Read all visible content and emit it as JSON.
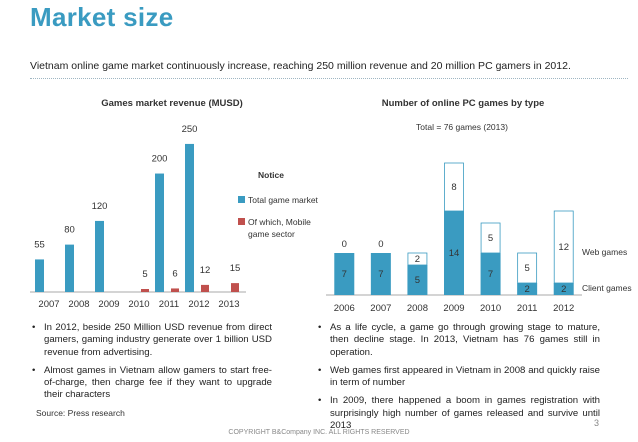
{
  "header": {
    "title": "Market size",
    "subtitle": "Vietnam online game market continuously increase, reaching 250 million revenue and 20 million PC gamers in 2012."
  },
  "colors": {
    "accent": "#3a9bc1",
    "mobile": "#c0504d",
    "web": "#ffffff",
    "web_border": "#3a9bc1"
  },
  "chart_data": [
    {
      "type": "bar",
      "title": "Games market revenue (MUSD)",
      "categories": [
        "2007",
        "2008",
        "2009",
        "2010",
        "2011",
        "2012",
        "2013"
      ],
      "series": [
        {
          "name": "Total game market",
          "values": [
            55,
            80,
            120,
            null,
            200,
            250,
            null
          ]
        },
        {
          "name": "Of which, Mobile game sector",
          "values": [
            null,
            null,
            null,
            5,
            6,
            12,
            15
          ]
        }
      ],
      "ylim": [
        0,
        260
      ],
      "legend_title": "Notice",
      "legend_position": "right"
    },
    {
      "type": "bar",
      "stacked": true,
      "title": "Number of online PC games by type",
      "subtitle": "Total = 76 games (2013)",
      "categories": [
        "2006",
        "2007",
        "2008",
        "2009",
        "2010",
        "2011",
        "2012"
      ],
      "series": [
        {
          "name": "Client games",
          "values": [
            7,
            7,
            5,
            14,
            7,
            2,
            2
          ]
        },
        {
          "name": "Web games",
          "values": [
            0,
            0,
            2,
            8,
            5,
            5,
            12
          ]
        }
      ],
      "ylim": [
        0,
        22.5
      ],
      "legend_position": "right"
    }
  ],
  "notes": {
    "left": [
      "In 2012, beside 250 Million USD revenue from direct gamers, gaming industry generate over 1 billion USD revenue from advertising.",
      "Almost games in Vietnam allow gamers to start free-of-charge, then charge fee if they want to upgrade their characters"
    ],
    "right": [
      "As a life cycle, a game go through growing stage to mature, then decline stage. In 2013, Vietnam has 76 games still in operation.",
      "Web games first appeared in Vietnam in 2008 and quickly raise in term of number",
      "In 2009, there happened a boom in games registration with surprisingly high number of games released and survive until 2013"
    ]
  },
  "footer": {
    "source": "Source: Press research",
    "copyright": "COPYRIGHT B&Company INC. ALL RIGHTS RESERVED",
    "page_number": "3"
  }
}
